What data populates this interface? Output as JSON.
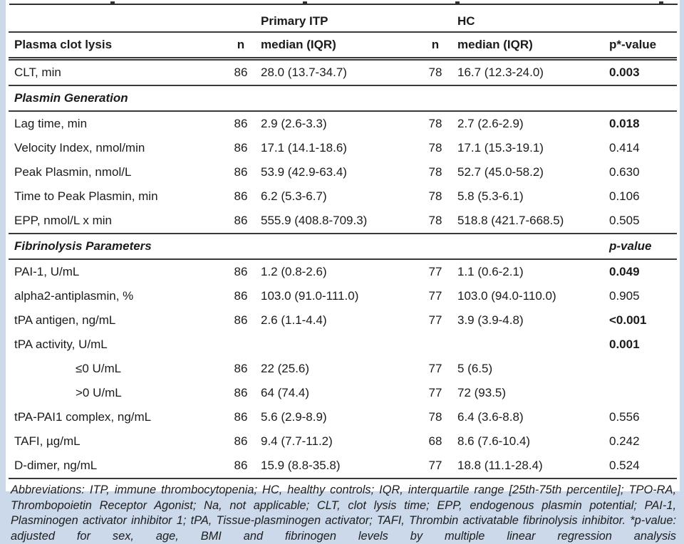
{
  "page": {
    "background_color": "#ccd9eb",
    "sheet_color": "#ffffff",
    "rule_color": "#3a3a3a"
  },
  "table": {
    "group_header": {
      "itp": "Primary ITP",
      "hc": "HC"
    },
    "columns": [
      "Plasma clot lysis",
      "n",
      "median (IQR)",
      "n",
      "median (IQR)",
      "p*-value"
    ],
    "rows": [
      {
        "type": "data",
        "name": "CLT, min",
        "n1": "86",
        "v1": "28.0 (13.7-34.7)",
        "n2": "78",
        "v2": "16.7 (12.3-24.0)",
        "p": "0.003",
        "p_bold": true,
        "rule_after": true
      },
      {
        "type": "section",
        "name": "Plasmin Generation",
        "p": "",
        "rule_after": true
      },
      {
        "type": "data",
        "name": "Lag time, min",
        "n1": "86",
        "v1": "2.9 (2.6-3.3)",
        "n2": "78",
        "v2": "2.7 (2.6-2.9)",
        "p": "0.018",
        "p_bold": true
      },
      {
        "type": "data",
        "name": "Velocity Index, nmol/min",
        "n1": "86",
        "v1": "17.1 (14.1-18.6)",
        "n2": "78",
        "v2": "17.1 (15.3-19.1)",
        "p": "0.414"
      },
      {
        "type": "data",
        "name": "Peak Plasmin, nmol/L",
        "n1": "86",
        "v1": "53.9 (42.9-63.4)",
        "n2": "78",
        "v2": "52.7 (45.0-58.2)",
        "p": "0.630"
      },
      {
        "type": "data",
        "name": "Time to Peak Plasmin, min",
        "n1": "86",
        "v1": "6.2 (5.3-6.7)",
        "n2": "78",
        "v2": "5.8 (5.3-6.1)",
        "p": "0.106"
      },
      {
        "type": "data",
        "name": "EPP, nmol/L x min",
        "n1": "86",
        "v1": "555.9 (408.8-709.3)",
        "n2": "78",
        "v2": "518.8 (421.7-668.5)",
        "p": "0.505",
        "rule_after": true
      },
      {
        "type": "section",
        "name": "Fibrinolysis Parameters",
        "p": "p-value",
        "rule_after": true
      },
      {
        "type": "data",
        "name": "PAI-1, U/mL",
        "n1": "86",
        "v1": "1.2 (0.8-2.6)",
        "n2": "77",
        "v2": "1.1 (0.6-2.1)",
        "p": "0.049",
        "p_bold": true
      },
      {
        "type": "data",
        "name": "alpha2-antiplasmin, %",
        "n1": "86",
        "v1": "103.0 (91.0-111.0)",
        "n2": "77",
        "v2": "103.0 (94.0-110.0)",
        "p": "0.905"
      },
      {
        "type": "data",
        "name": "tPA antigen, ng/mL",
        "n1": "86",
        "v1": "2.6 (1.1-4.4)",
        "n2": "77",
        "v2": "3.9 (3.9-4.8)",
        "p": "<0.001",
        "p_bold": true
      },
      {
        "type": "data",
        "name": "tPA activity, U/mL",
        "n1": "",
        "v1": "",
        "n2": "",
        "v2": "",
        "p": "0.001",
        "p_bold": true
      },
      {
        "type": "data",
        "name": "≤0 U/mL",
        "indent": true,
        "n1": "86",
        "v1": "22 (25.6)",
        "n2": "77",
        "v2": "5 (6.5)",
        "p": ""
      },
      {
        "type": "data",
        "name": ">0 U/mL",
        "indent": true,
        "n1": "86",
        "v1": "64 (74.4)",
        "n2": "77",
        "v2": "72 (93.5)",
        "p": ""
      },
      {
        "type": "data",
        "name": "tPA-PAI1 complex, ng/mL",
        "n1": "86",
        "v1": "5.6 (2.9-8.9)",
        "n2": "78",
        "v2": "6.4 (3.6-8.8)",
        "p": "0.556"
      },
      {
        "type": "data",
        "name": "TAFI, µg/mL",
        "n1": "86",
        "v1": "9.4 (7.7-11.2)",
        "n2": "68",
        "v2": "8.6 (7.6-10.4)",
        "p": "0.242"
      },
      {
        "type": "data",
        "name": "D-dimer, ng/mL",
        "n1": "86",
        "v1": "15.9 (8.8-35.8)",
        "n2": "77",
        "v2": "18.8 (11.1-28.4)",
        "p": "0.524",
        "rule_after": true
      }
    ]
  },
  "footnote": {
    "text": "Abbreviations: ITP, immune thrombocytopenia; HC, healthy controls; IQR, interquartile range [25th-75th percentile]; TPO-RA, Thrombopoietin Receptor Agonist; Na, not applicable; CLT, clot lysis time; EPP, endogenous plasmin potential; PAI-1, Plasminogen activator inhibitor 1; tPA, Tissue-plasminogen activator; TAFI, Thrombin activatable fibrinolysis inhibitor. *p-value: adjusted for sex, age, BMI and fibrinogen levels by multiple linear regression analysis"
  }
}
